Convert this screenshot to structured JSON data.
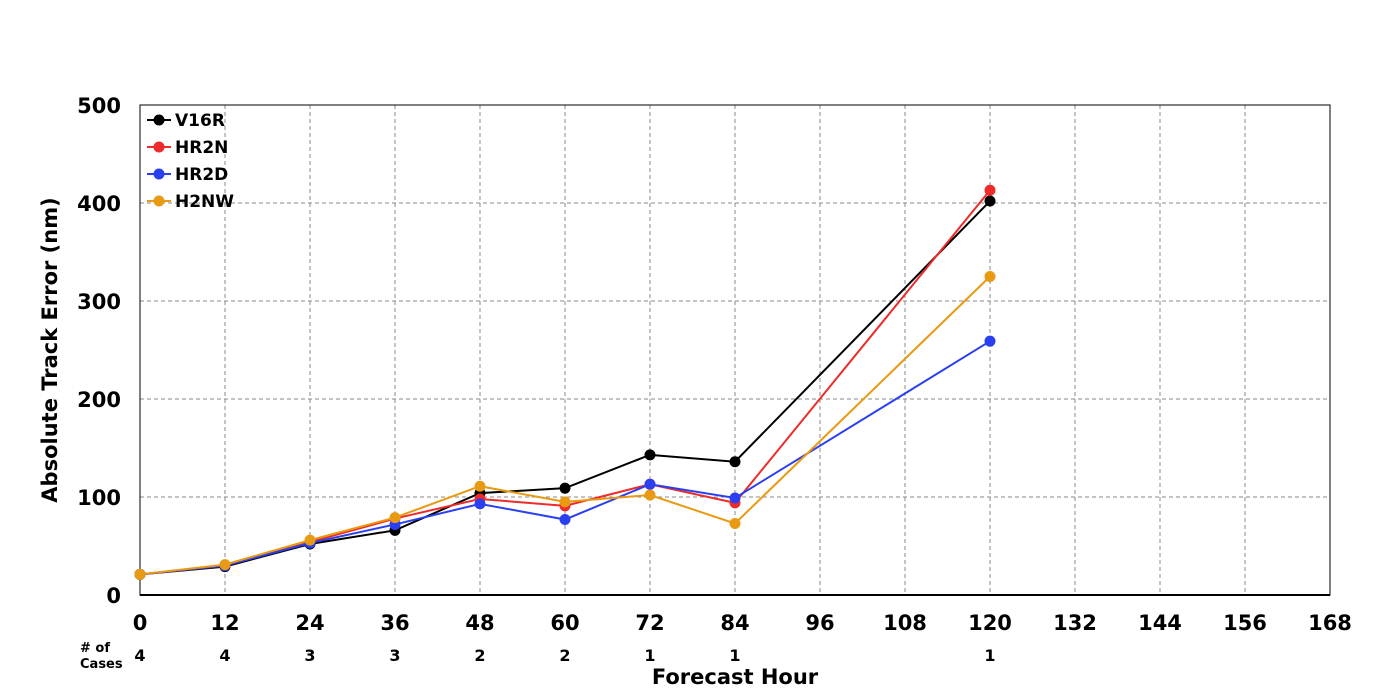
{
  "chart_data": {
    "type": "line",
    "title": "",
    "xlabel": "Forecast Hour",
    "ylabel": "Absolute Track Error (nm)",
    "xlim": [
      0,
      168
    ],
    "ylim": [
      0,
      500
    ],
    "x_ticks": [
      0,
      12,
      24,
      36,
      48,
      60,
      72,
      84,
      96,
      108,
      120,
      132,
      144,
      156,
      168
    ],
    "y_ticks": [
      0,
      100,
      200,
      300,
      400,
      500
    ],
    "grid": true,
    "legend_position": "top-left",
    "x": [
      0,
      12,
      24,
      36,
      48,
      60,
      72,
      84,
      120
    ],
    "series": [
      {
        "name": "V16R",
        "color": "#000000",
        "values": [
          21,
          29,
          52,
          66,
          104,
          109,
          143,
          136,
          402
        ]
      },
      {
        "name": "HR2N",
        "color": "#ee2a2a",
        "values": [
          21,
          30,
          54,
          78,
          98,
          91,
          113,
          94,
          413
        ]
      },
      {
        "name": "HR2D",
        "color": "#2a3ff0",
        "values": [
          21,
          30,
          53,
          72,
          93,
          77,
          113,
          99,
          259
        ]
      },
      {
        "name": "H2NW",
        "color": "#e89a12",
        "values": [
          21,
          31,
          56,
          79,
          111,
          95,
          102,
          73,
          325
        ]
      }
    ],
    "cases": {
      "label_line1": "# of",
      "label_line2": "Cases",
      "x": [
        0,
        12,
        24,
        36,
        48,
        60,
        72,
        84,
        120
      ],
      "counts": [
        "4",
        "4",
        "3",
        "3",
        "2",
        "2",
        "1",
        "1",
        "1"
      ]
    }
  }
}
